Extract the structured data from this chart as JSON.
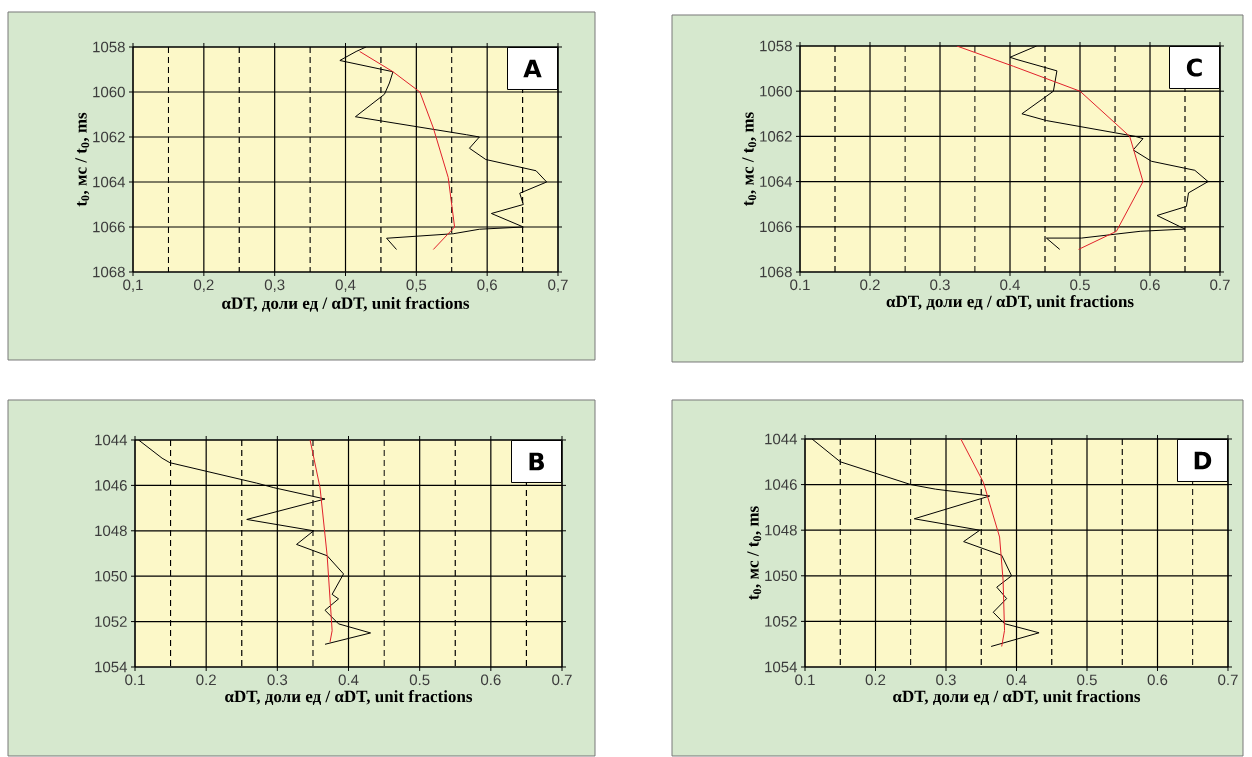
{
  "chart_data": [
    {
      "type": "line",
      "xlabel": "αDT, доли ед / αDT, unit fractions",
      "ylabel": "t$_{0}$, мс / t$_{0}$, ms",
      "annotations": [
        "A"
      ],
      "grid": true,
      "xlim": [
        0.1,
        0.7
      ],
      "xticks": [
        {
          "value": 0.1,
          "label": "0,1"
        },
        {
          "value": 0.2,
          "label": "0,2"
        },
        {
          "value": 0.3,
          "label": "0,3"
        },
        {
          "value": 0.4,
          "label": "0,4"
        },
        {
          "value": 0.5,
          "label": "0,5"
        },
        {
          "value": 0.6,
          "label": "0,6"
        },
        {
          "value": 0.7,
          "label": "0,7"
        }
      ],
      "ylim": [
        1068,
        1058
      ],
      "yticks": [
        1058,
        1060,
        1062,
        1064,
        1066,
        1068
      ],
      "ref_lines": [
        {
          "axis": "x",
          "value": 0.15,
          "color": "#000000",
          "line_style": "dashed"
        },
        {
          "axis": "x",
          "value": 0.25,
          "color": "#000000",
          "line_style": "dashed"
        },
        {
          "axis": "x",
          "value": 0.35,
          "color": "#000000",
          "line_style": "dashed"
        },
        {
          "axis": "x",
          "value": 0.45,
          "color": "#000000",
          "line_style": "dashed"
        },
        {
          "axis": "x",
          "value": 0.55,
          "color": "#000000",
          "line_style": "dashed"
        },
        {
          "axis": "x",
          "value": 0.65,
          "color": "#000000",
          "line_style": "dashed"
        }
      ],
      "series": [
        {
          "color": "#000000",
          "x": [
            0.429,
            0.415,
            0.392,
            0.467,
            0.462,
            0.455,
            0.414,
            0.453,
            0.571,
            0.589,
            0.575,
            0.598,
            0.669,
            0.684,
            0.646,
            0.651,
            0.606,
            0.651,
            0.589,
            0.552,
            0.458,
            0.472
          ],
          "values": [
            1058.0,
            1058.2,
            1058.6,
            1059.1,
            1059.6,
            1060.1,
            1061.1,
            1061.3,
            1061.9,
            1062.0,
            1062.5,
            1063.0,
            1063.5,
            1064.0,
            1064.5,
            1065.0,
            1065.4,
            1066.0,
            1066.1,
            1066.3,
            1066.5,
            1067.0
          ]
        },
        {
          "color": "#e0202a",
          "x": [
            0.42,
            0.467,
            0.505,
            0.524,
            0.545,
            0.554,
            0.542,
            0.524
          ],
          "values": [
            1058.2,
            1059.1,
            1060.0,
            1061.6,
            1063.8,
            1066.0,
            1066.4,
            1067.0
          ]
        }
      ]
    },
    {
      "type": "line",
      "xlabel": "αDT, доли ед / αDT, unit fractions",
      "ylabel": "t$_{0}$, мс / t$_{0}$, ms",
      "annotations": [
        "C"
      ],
      "grid": true,
      "xlim": [
        0.1,
        0.7
      ],
      "xticks": [
        0.1,
        0.2,
        0.3,
        0.4,
        0.5,
        0.6,
        0.7
      ],
      "ylim": [
        1068,
        1058
      ],
      "yticks": [
        1058,
        1060,
        1062,
        1064,
        1066,
        1068
      ],
      "ref_lines": [
        {
          "axis": "x",
          "value": 0.15,
          "color": "#000000",
          "line_style": "dashed"
        },
        {
          "axis": "x",
          "value": 0.25,
          "color": "#000000",
          "line_style": "dashed"
        },
        {
          "axis": "x",
          "value": 0.35,
          "color": "#000000",
          "line_style": "dashed"
        },
        {
          "axis": "x",
          "value": 0.45,
          "color": "#000000",
          "line_style": "dashed"
        },
        {
          "axis": "x",
          "value": 0.55,
          "color": "#000000",
          "line_style": "dashed"
        },
        {
          "axis": "x",
          "value": 0.65,
          "color": "#000000",
          "line_style": "dashed"
        }
      ],
      "series": [
        {
          "color": "#000000",
          "x": [
            0.438,
            0.4,
            0.41,
            0.467,
            0.462,
            0.417,
            0.452,
            0.579,
            0.59,
            0.576,
            0.602,
            0.664,
            0.683,
            0.655,
            0.652,
            0.61,
            0.65,
            0.586,
            0.502,
            0.452,
            0.471
          ],
          "values": [
            1058.0,
            1058.5,
            1058.6,
            1059.1,
            1060.0,
            1061.0,
            1061.3,
            1062.0,
            1062.1,
            1062.6,
            1063.1,
            1063.5,
            1064.0,
            1064.5,
            1065.1,
            1065.5,
            1066.1,
            1066.2,
            1066.5,
            1066.5,
            1067.0
          ]
        },
        {
          "color": "#e0202a",
          "x": [
            0.324,
            0.405,
            0.5,
            0.571,
            0.59,
            0.552,
            0.498
          ],
          "values": [
            1058.0,
            1058.9,
            1060.0,
            1062.0,
            1064.0,
            1066.2,
            1067.0
          ]
        }
      ]
    },
    {
      "type": "line",
      "xlabel": "αDT, доли ед / αDT, unit fractions",
      "annotations": [
        "B"
      ],
      "grid": true,
      "xlim": [
        0.1,
        0.7
      ],
      "xticks": [
        0.1,
        0.2,
        0.3,
        0.4,
        0.5,
        0.6,
        0.7
      ],
      "ylim": [
        1054,
        1044
      ],
      "yticks": [
        1044,
        1046,
        1048,
        1050,
        1052,
        1054
      ],
      "ref_lines": [
        {
          "axis": "x",
          "value": 0.15,
          "color": "#000000",
          "line_style": "dashed"
        },
        {
          "axis": "x",
          "value": 0.25,
          "color": "#000000",
          "line_style": "dashed"
        },
        {
          "axis": "x",
          "value": 0.35,
          "color": "#000000",
          "line_style": "dashed"
        },
        {
          "axis": "x",
          "value": 0.45,
          "color": "#000000",
          "line_style": "dashed"
        },
        {
          "axis": "x",
          "value": 0.55,
          "color": "#000000",
          "line_style": "dashed"
        },
        {
          "axis": "x",
          "value": 0.65,
          "color": "#000000",
          "line_style": "dashed"
        }
      ],
      "series": [
        {
          "color": "#000000",
          "x": [
            0.105,
            0.138,
            0.149,
            0.271,
            0.295,
            0.367,
            0.257,
            0.351,
            0.327,
            0.37,
            0.393,
            0.377,
            0.386,
            0.367,
            0.386,
            0.431,
            0.367
          ],
          "values": [
            1044.0,
            1044.8,
            1045.0,
            1045.9,
            1046.1,
            1046.6,
            1047.5,
            1048.0,
            1048.6,
            1049.1,
            1049.9,
            1050.8,
            1051.0,
            1051.5,
            1052.1,
            1052.5,
            1053.0
          ]
        },
        {
          "color": "#e0202a",
          "x": [
            0.346,
            0.36,
            0.37,
            0.377,
            0.374
          ],
          "values": [
            1044.0,
            1046.1,
            1049.1,
            1052.4,
            1052.9
          ]
        }
      ]
    },
    {
      "type": "line",
      "xlabel": "αDT, доли ед / αDT, unit fractions",
      "ylabel": "t$_{0}$, мс / t$_{0}$, ms",
      "annotations": [
        "D"
      ],
      "grid": true,
      "xlim": [
        0.1,
        0.7
      ],
      "xticks": [
        0.1,
        0.2,
        0.3,
        0.4,
        0.5,
        0.6,
        0.7
      ],
      "ylim": [
        1054,
        1044
      ],
      "yticks": [
        1044,
        1046,
        1048,
        1050,
        1052,
        1054
      ],
      "ref_lines": [
        {
          "axis": "x",
          "value": 0.15,
          "color": "#000000",
          "line_style": "dashed"
        },
        {
          "axis": "x",
          "value": 0.25,
          "color": "#000000",
          "line_style": "dashed"
        },
        {
          "axis": "x",
          "value": 0.35,
          "color": "#000000",
          "line_style": "dashed"
        },
        {
          "axis": "x",
          "value": 0.45,
          "color": "#000000",
          "line_style": "dashed"
        },
        {
          "axis": "x",
          "value": 0.55,
          "color": "#000000",
          "line_style": "dashed"
        },
        {
          "axis": "x",
          "value": 0.65,
          "color": "#000000",
          "line_style": "dashed"
        }
      ],
      "series": [
        {
          "color": "#000000",
          "x": [
            0.11,
            0.15,
            0.25,
            0.285,
            0.362,
            0.255,
            0.348,
            0.325,
            0.379,
            0.393,
            0.372,
            0.386,
            0.367,
            0.383,
            0.432,
            0.364
          ],
          "values": [
            1044.0,
            1045.0,
            1046.0,
            1046.2,
            1046.5,
            1047.5,
            1048.0,
            1048.5,
            1049.1,
            1050.0,
            1050.5,
            1051.0,
            1051.6,
            1052.1,
            1052.5,
            1053.1
          ]
        },
        {
          "color": "#e0202a",
          "x": [
            0.321,
            0.353,
            0.376,
            0.381,
            0.383,
            0.379
          ],
          "values": [
            1044.0,
            1045.9,
            1048.3,
            1050.2,
            1052.4,
            1053.1
          ]
        }
      ]
    }
  ]
}
